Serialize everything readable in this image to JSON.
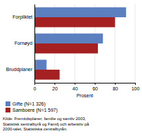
{
  "chart_data": {
    "type": "bar",
    "orientation": "horizontal",
    "categories": [
      "Forpliktet",
      "Fornøyd",
      "Bruddplaner"
    ],
    "series": [
      {
        "name": "Gifte (N=1 326)",
        "color": "#5B7FBF",
        "values": [
          91,
          68,
          12
        ]
      },
      {
        "name": "Samboere (N=1 597)",
        "color": "#A52020",
        "values": [
          80,
          63,
          25
        ]
      }
    ],
    "xlabel": "Prosent",
    "xlim": [
      0,
      100
    ],
    "xticks": [
      0,
      20,
      40,
      60,
      80,
      100
    ],
    "grid": true,
    "legend": "bottom",
    "annotations": [
      "Kilde: Fremtidsplaner, familie og samliv 2003,\nStatistisk sentralbyrå og Familj och arbetsliv på\n2000-talet, Statistiska centralbyrån."
    ]
  }
}
